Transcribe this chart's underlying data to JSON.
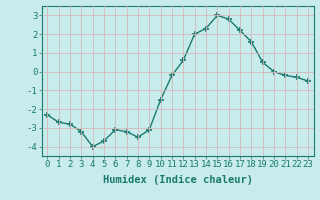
{
  "x": [
    0,
    1,
    2,
    3,
    4,
    5,
    6,
    7,
    8,
    9,
    10,
    11,
    12,
    13,
    14,
    15,
    16,
    17,
    18,
    19,
    20,
    21,
    22,
    23
  ],
  "y": [
    -2.3,
    -2.7,
    -2.8,
    -3.2,
    -4.0,
    -3.7,
    -3.1,
    -3.2,
    -3.5,
    -3.1,
    -1.5,
    -0.2,
    0.6,
    2.0,
    2.3,
    3.0,
    2.8,
    2.2,
    1.6,
    0.5,
    0.0,
    -0.2,
    -0.3,
    -0.5
  ],
  "line_color": "#1a7a6e",
  "marker": "+",
  "marker_size": 4,
  "marker_lw": 1.2,
  "bg_color": "#c8ecec",
  "grid_color": "#d4b8b8",
  "xlabel": "Humidex (Indice chaleur)",
  "xlabel_fontsize": 7.5,
  "xlabel_weight": "bold",
  "ylabel_ticks": [
    3,
    2,
    1,
    0,
    -1,
    -2,
    -3,
    -4
  ],
  "xlim": [
    -0.5,
    23.5
  ],
  "ylim": [
    -4.5,
    3.5
  ],
  "tick_fontsize": 6.5,
  "line_width": 1.0
}
